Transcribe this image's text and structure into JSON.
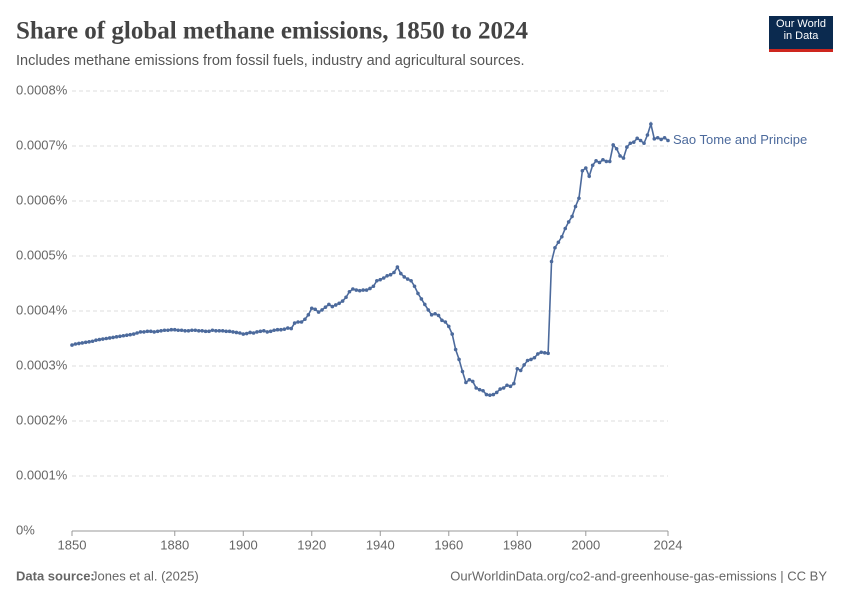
{
  "chart_data": {
    "type": "line",
    "title": "Share of global methane emissions, 1850 to 2024",
    "subtitle": "Includes methane emissions from fossil fuels, industry and agricultural sources.",
    "logo": "Our World in Data",
    "source_label": "Data source:",
    "source": "Jones et al. (2025)",
    "footer_right": "OurWorldinData.org/co2-and-greenhouse-gas-emissions | CC BY",
    "x": [
      1850,
      1851,
      1852,
      1853,
      1854,
      1855,
      1856,
      1857,
      1858,
      1859,
      1860,
      1861,
      1862,
      1863,
      1864,
      1865,
      1866,
      1867,
      1868,
      1869,
      1870,
      1871,
      1872,
      1873,
      1874,
      1875,
      1876,
      1877,
      1878,
      1879,
      1880,
      1881,
      1882,
      1883,
      1884,
      1885,
      1886,
      1887,
      1888,
      1889,
      1890,
      1891,
      1892,
      1893,
      1894,
      1895,
      1896,
      1897,
      1898,
      1899,
      1900,
      1901,
      1902,
      1903,
      1904,
      1905,
      1906,
      1907,
      1908,
      1909,
      1910,
      1911,
      1912,
      1913,
      1914,
      1915,
      1916,
      1917,
      1918,
      1919,
      1920,
      1921,
      1922,
      1923,
      1924,
      1925,
      1926,
      1927,
      1928,
      1929,
      1930,
      1931,
      1932,
      1933,
      1934,
      1935,
      1936,
      1937,
      1938,
      1939,
      1940,
      1941,
      1942,
      1943,
      1944,
      1945,
      1946,
      1947,
      1948,
      1949,
      1950,
      1951,
      1952,
      1953,
      1954,
      1955,
      1956,
      1957,
      1958,
      1959,
      1960,
      1961,
      1962,
      1963,
      1964,
      1965,
      1966,
      1967,
      1968,
      1969,
      1970,
      1971,
      1972,
      1973,
      1974,
      1975,
      1976,
      1977,
      1978,
      1979,
      1980,
      1981,
      1982,
      1983,
      1984,
      1985,
      1986,
      1987,
      1988,
      1989,
      1990,
      1991,
      1992,
      1993,
      1994,
      1995,
      1996,
      1997,
      1998,
      1999,
      2000,
      2001,
      2002,
      2003,
      2004,
      2005,
      2006,
      2007,
      2008,
      2009,
      2010,
      2011,
      2012,
      2013,
      2014,
      2015,
      2016,
      2017,
      2018,
      2019,
      2020,
      2021,
      2022,
      2023,
      2024
    ],
    "series": [
      {
        "name": "Sao Tome and Principe",
        "color": "#4c6a9c",
        "values": [
          0.000338,
          0.00034,
          0.000341,
          0.000342,
          0.000343,
          0.000344,
          0.000345,
          0.000347,
          0.000348,
          0.000349,
          0.00035,
          0.000351,
          0.000352,
          0.000353,
          0.000354,
          0.000355,
          0.000356,
          0.000357,
          0.000358,
          0.00036,
          0.000362,
          0.000362,
          0.000363,
          0.000363,
          0.000362,
          0.000363,
          0.000364,
          0.000365,
          0.000365,
          0.000366,
          0.000366,
          0.000365,
          0.000365,
          0.000364,
          0.000364,
          0.000365,
          0.000365,
          0.000364,
          0.000364,
          0.000363,
          0.000363,
          0.000365,
          0.000364,
          0.000364,
          0.000364,
          0.000363,
          0.000363,
          0.000362,
          0.000361,
          0.00036,
          0.000358,
          0.000359,
          0.000361,
          0.00036,
          0.000362,
          0.000363,
          0.000364,
          0.000362,
          0.000363,
          0.000365,
          0.000366,
          0.000366,
          0.000367,
          0.000369,
          0.000368,
          0.000378,
          0.00038,
          0.00038,
          0.000385,
          0.000393,
          0.000405,
          0.000403,
          0.000398,
          0.000402,
          0.000407,
          0.000412,
          0.000408,
          0.000411,
          0.000414,
          0.000418,
          0.000425,
          0.000435,
          0.00044,
          0.000438,
          0.000437,
          0.000438,
          0.000438,
          0.000441,
          0.000445,
          0.000455,
          0.000457,
          0.00046,
          0.000464,
          0.000466,
          0.00047,
          0.00048,
          0.000468,
          0.000462,
          0.000458,
          0.000455,
          0.000445,
          0.000432,
          0.000422,
          0.000412,
          0.000402,
          0.000393,
          0.000395,
          0.000392,
          0.000383,
          0.00038,
          0.000372,
          0.000358,
          0.00033,
          0.000312,
          0.00029,
          0.00027,
          0.000275,
          0.000272,
          0.00026,
          0.000257,
          0.000255,
          0.000248,
          0.000247,
          0.000248,
          0.000252,
          0.000258,
          0.00026,
          0.000265,
          0.000263,
          0.000268,
          0.000295,
          0.000292,
          0.000302,
          0.00031,
          0.000312,
          0.000315,
          0.000322,
          0.000325,
          0.000324,
          0.000323,
          0.00049,
          0.000515,
          0.000525,
          0.000535,
          0.00055,
          0.000562,
          0.000572,
          0.00059,
          0.000605,
          0.000655,
          0.00066,
          0.000645,
          0.000665,
          0.000673,
          0.00067,
          0.000675,
          0.000672,
          0.000672,
          0.000702,
          0.000695,
          0.000682,
          0.000678,
          0.000698,
          0.000705,
          0.000707,
          0.000714,
          0.00071,
          0.000705,
          0.00072,
          0.00074,
          0.000713,
          0.000715,
          0.000712,
          0.000715,
          0.00071
        ]
      }
    ],
    "xlim": [
      1850,
      2024
    ],
    "xticks": [
      1850,
      1880,
      1900,
      1920,
      1940,
      1960,
      1980,
      2000,
      2024
    ],
    "ylim": [
      0,
      0.0008
    ],
    "yticks": [
      {
        "value": 0,
        "label": "0%"
      },
      {
        "value": 0.0001,
        "label": "0.0001%"
      },
      {
        "value": 0.0002,
        "label": "0.0002%"
      },
      {
        "value": 0.0003,
        "label": "0.0003%"
      },
      {
        "value": 0.0004,
        "label": "0.0004%"
      },
      {
        "value": 0.0005,
        "label": "0.0005%"
      },
      {
        "value": 0.0006,
        "label": "0.0006%"
      },
      {
        "value": 0.0007,
        "label": "0.0007%"
      },
      {
        "value": 0.0008,
        "label": "0.0008%"
      }
    ],
    "grid": true
  }
}
